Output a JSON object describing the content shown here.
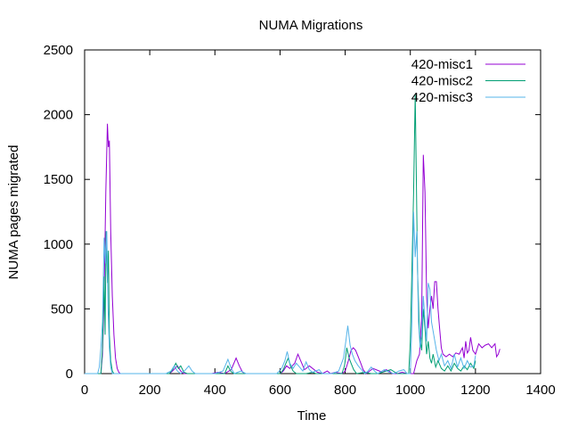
{
  "chart_data": {
    "type": "line",
    "title": "NUMA Migrations",
    "xlabel": "Time",
    "ylabel": "NUMA pages migrated",
    "xlim": [
      0,
      1400
    ],
    "ylim": [
      0,
      2500
    ],
    "xticks": [
      0,
      200,
      400,
      600,
      800,
      1000,
      1200,
      1400
    ],
    "yticks": [
      0,
      500,
      1000,
      1500,
      2000,
      2500
    ],
    "grid": false,
    "legend": "top-right",
    "series": [
      {
        "name": "420-misc1",
        "color": "#9400d3",
        "points": [
          [
            0,
            0
          ],
          [
            40,
            0
          ],
          [
            50,
            0
          ],
          [
            55,
            150
          ],
          [
            60,
            600
          ],
          [
            65,
            1400
          ],
          [
            70,
            1930
          ],
          [
            73,
            1750
          ],
          [
            76,
            1800
          ],
          [
            80,
            1100
          ],
          [
            85,
            600
          ],
          [
            90,
            300
          ],
          [
            95,
            120
          ],
          [
            100,
            40
          ],
          [
            105,
            10
          ],
          [
            110,
            0
          ],
          [
            200,
            0
          ],
          [
            260,
            0
          ],
          [
            270,
            20
          ],
          [
            285,
            60
          ],
          [
            295,
            20
          ],
          [
            305,
            0
          ],
          [
            360,
            0
          ],
          [
            390,
            0
          ],
          [
            410,
            10
          ],
          [
            430,
            0
          ],
          [
            450,
            30
          ],
          [
            465,
            120
          ],
          [
            475,
            60
          ],
          [
            485,
            10
          ],
          [
            495,
            0
          ],
          [
            560,
            0
          ],
          [
            600,
            0
          ],
          [
            610,
            20
          ],
          [
            620,
            60
          ],
          [
            630,
            40
          ],
          [
            645,
            80
          ],
          [
            655,
            150
          ],
          [
            665,
            90
          ],
          [
            675,
            30
          ],
          [
            690,
            60
          ],
          [
            700,
            40
          ],
          [
            715,
            10
          ],
          [
            730,
            0
          ],
          [
            745,
            20
          ],
          [
            755,
            0
          ],
          [
            770,
            10
          ],
          [
            790,
            0
          ],
          [
            800,
            20
          ],
          [
            810,
            100
          ],
          [
            818,
            180
          ],
          [
            825,
            200
          ],
          [
            832,
            180
          ],
          [
            840,
            130
          ],
          [
            848,
            80
          ],
          [
            855,
            30
          ],
          [
            865,
            0
          ],
          [
            875,
            20
          ],
          [
            885,
            40
          ],
          [
            895,
            30
          ],
          [
            905,
            20
          ],
          [
            915,
            10
          ],
          [
            925,
            30
          ],
          [
            935,
            20
          ],
          [
            945,
            0
          ],
          [
            960,
            0
          ],
          [
            975,
            10
          ],
          [
            990,
            0
          ],
          [
            1000,
            0
          ],
          [
            1010,
            0
          ],
          [
            1020,
            100
          ],
          [
            1028,
            150
          ],
          [
            1035,
            450
          ],
          [
            1040,
            1690
          ],
          [
            1045,
            1400
          ],
          [
            1050,
            600
          ],
          [
            1055,
            350
          ],
          [
            1060,
            500
          ],
          [
            1065,
            600
          ],
          [
            1070,
            500
          ],
          [
            1075,
            710
          ],
          [
            1080,
            710
          ],
          [
            1085,
            500
          ],
          [
            1090,
            350
          ],
          [
            1095,
            200
          ],
          [
            1100,
            150
          ],
          [
            1110,
            130
          ],
          [
            1120,
            150
          ],
          [
            1130,
            130
          ],
          [
            1140,
            160
          ],
          [
            1150,
            150
          ],
          [
            1160,
            200
          ],
          [
            1165,
            120
          ],
          [
            1170,
            250
          ],
          [
            1175,
            160
          ],
          [
            1180,
            180
          ],
          [
            1185,
            280
          ],
          [
            1192,
            180
          ],
          [
            1200,
            150
          ],
          [
            1210,
            230
          ],
          [
            1220,
            200
          ],
          [
            1230,
            220
          ],
          [
            1240,
            230
          ],
          [
            1250,
            200
          ],
          [
            1260,
            230
          ],
          [
            1265,
            130
          ],
          [
            1270,
            150
          ],
          [
            1275,
            190
          ]
        ]
      },
      {
        "name": "420-misc2",
        "color": "#009e73",
        "points": [
          [
            0,
            0
          ],
          [
            40,
            0
          ],
          [
            50,
            0
          ],
          [
            55,
            200
          ],
          [
            60,
            750
          ],
          [
            63,
            300
          ],
          [
            66,
            1100
          ],
          [
            70,
            700
          ],
          [
            73,
            950
          ],
          [
            76,
            300
          ],
          [
            80,
            100
          ],
          [
            85,
            20
          ],
          [
            90,
            0
          ],
          [
            110,
            0
          ],
          [
            200,
            0
          ],
          [
            260,
            0
          ],
          [
            270,
            30
          ],
          [
            280,
            80
          ],
          [
            288,
            40
          ],
          [
            295,
            60
          ],
          [
            305,
            10
          ],
          [
            315,
            0
          ],
          [
            400,
            0
          ],
          [
            430,
            0
          ],
          [
            440,
            60
          ],
          [
            448,
            20
          ],
          [
            458,
            0
          ],
          [
            560,
            0
          ],
          [
            600,
            0
          ],
          [
            610,
            30
          ],
          [
            618,
            80
          ],
          [
            625,
            120
          ],
          [
            632,
            60
          ],
          [
            640,
            20
          ],
          [
            650,
            0
          ],
          [
            680,
            0
          ],
          [
            700,
            10
          ],
          [
            710,
            0
          ],
          [
            760,
            0
          ],
          [
            790,
            0
          ],
          [
            798,
            60
          ],
          [
            805,
            200
          ],
          [
            812,
            120
          ],
          [
            818,
            80
          ],
          [
            826,
            30
          ],
          [
            835,
            0
          ],
          [
            860,
            10
          ],
          [
            880,
            0
          ],
          [
            900,
            0
          ],
          [
            940,
            30
          ],
          [
            960,
            0
          ],
          [
            980,
            0
          ],
          [
            995,
            0
          ],
          [
            1000,
            250
          ],
          [
            1005,
            800
          ],
          [
            1010,
            1400
          ],
          [
            1015,
            2160
          ],
          [
            1018,
            1600
          ],
          [
            1022,
            800
          ],
          [
            1028,
            300
          ],
          [
            1035,
            180
          ],
          [
            1040,
            500
          ],
          [
            1045,
            350
          ],
          [
            1050,
            150
          ],
          [
            1055,
            250
          ],
          [
            1060,
            120
          ],
          [
            1065,
            80
          ],
          [
            1070,
            150
          ],
          [
            1078,
            50
          ],
          [
            1085,
            100
          ],
          [
            1095,
            40
          ],
          [
            1105,
            20
          ],
          [
            1115,
            60
          ],
          [
            1125,
            20
          ],
          [
            1135,
            80
          ],
          [
            1145,
            40
          ],
          [
            1155,
            20
          ],
          [
            1165,
            60
          ],
          [
            1175,
            30
          ],
          [
            1185,
            80
          ],
          [
            1195,
            40
          ],
          [
            1200,
            100
          ]
        ]
      },
      {
        "name": "420-misc3",
        "color": "#56b4e9",
        "points": [
          [
            0,
            0
          ],
          [
            40,
            0
          ],
          [
            45,
            50
          ],
          [
            50,
            200
          ],
          [
            55,
            400
          ],
          [
            60,
            1050
          ],
          [
            64,
            850
          ],
          [
            68,
            1100
          ],
          [
            72,
            500
          ],
          [
            76,
            200
          ],
          [
            80,
            50
          ],
          [
            85,
            0
          ],
          [
            110,
            0
          ],
          [
            200,
            0
          ],
          [
            250,
            0
          ],
          [
            265,
            20
          ],
          [
            275,
            60
          ],
          [
            285,
            20
          ],
          [
            295,
            0
          ],
          [
            310,
            30
          ],
          [
            320,
            60
          ],
          [
            330,
            20
          ],
          [
            340,
            0
          ],
          [
            400,
            0
          ],
          [
            425,
            20
          ],
          [
            440,
            110
          ],
          [
            450,
            40
          ],
          [
            460,
            0
          ],
          [
            480,
            20
          ],
          [
            495,
            0
          ],
          [
            560,
            0
          ],
          [
            590,
            0
          ],
          [
            605,
            40
          ],
          [
            615,
            100
          ],
          [
            622,
            170
          ],
          [
            630,
            80
          ],
          [
            640,
            40
          ],
          [
            650,
            80
          ],
          [
            660,
            50
          ],
          [
            670,
            20
          ],
          [
            680,
            90
          ],
          [
            690,
            30
          ],
          [
            700,
            10
          ],
          [
            720,
            30
          ],
          [
            730,
            0
          ],
          [
            760,
            0
          ],
          [
            780,
            20
          ],
          [
            795,
            120
          ],
          [
            802,
            250
          ],
          [
            808,
            370
          ],
          [
            815,
            220
          ],
          [
            822,
            150
          ],
          [
            830,
            100
          ],
          [
            840,
            60
          ],
          [
            850,
            30
          ],
          [
            860,
            0
          ],
          [
            870,
            20
          ],
          [
            880,
            50
          ],
          [
            890,
            20
          ],
          [
            900,
            0
          ],
          [
            920,
            30
          ],
          [
            935,
            10
          ],
          [
            950,
            0
          ],
          [
            965,
            20
          ],
          [
            980,
            30
          ],
          [
            990,
            0
          ],
          [
            1000,
            0
          ],
          [
            1005,
            400
          ],
          [
            1010,
            1250
          ],
          [
            1015,
            900
          ],
          [
            1020,
            1100
          ],
          [
            1025,
            400
          ],
          [
            1030,
            200
          ],
          [
            1035,
            300
          ],
          [
            1040,
            600
          ],
          [
            1045,
            400
          ],
          [
            1050,
            250
          ],
          [
            1055,
            700
          ],
          [
            1060,
            650
          ],
          [
            1065,
            400
          ],
          [
            1072,
            300
          ],
          [
            1080,
            180
          ],
          [
            1088,
            100
          ],
          [
            1095,
            150
          ],
          [
            1105,
            60
          ],
          [
            1115,
            100
          ],
          [
            1125,
            40
          ],
          [
            1135,
            150
          ],
          [
            1145,
            50
          ],
          [
            1155,
            120
          ],
          [
            1165,
            40
          ],
          [
            1175,
            100
          ],
          [
            1185,
            50
          ],
          [
            1195,
            60
          ],
          [
            1200,
            140
          ]
        ]
      }
    ]
  }
}
